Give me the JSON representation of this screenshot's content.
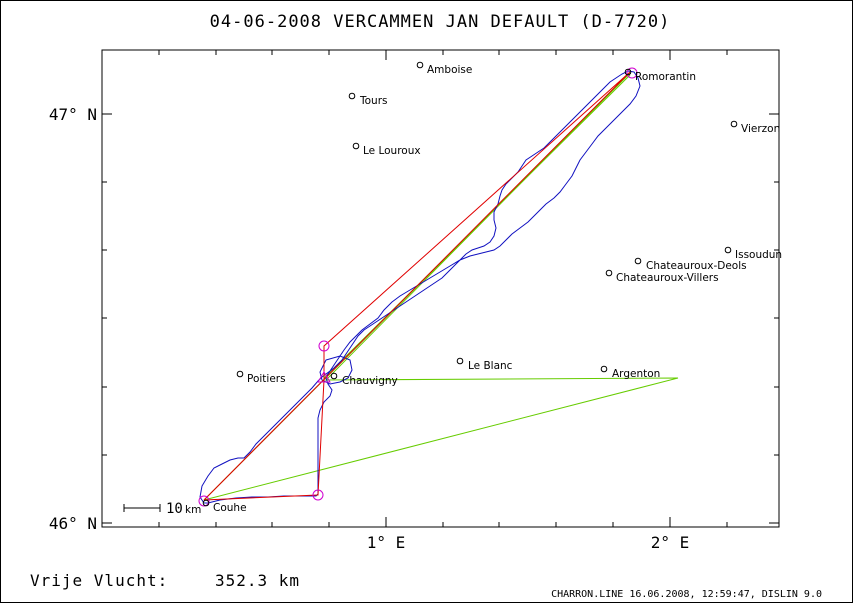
{
  "title": "04-06-2008    VERCAMMEN JAN    DEFAULT (D-7720)",
  "axes": {
    "lat_labels": [
      "47° N",
      "46° N"
    ],
    "lon_labels": [
      "1° E",
      "2° E"
    ]
  },
  "cities": [
    {
      "name": "Amboise"
    },
    {
      "name": "Tours"
    },
    {
      "name": "Le Louroux"
    },
    {
      "name": "Vierzon"
    },
    {
      "name": "Romorantin"
    },
    {
      "name": "Issoudun"
    },
    {
      "name": "Chateauroux-Deols"
    },
    {
      "name": "Chateauroux-Villers"
    },
    {
      "name": "Le Blanc"
    },
    {
      "name": "Argenton"
    },
    {
      "name": "Poitiers"
    },
    {
      "name": "Chauvigny"
    },
    {
      "name": "Couhe"
    }
  ],
  "scale": {
    "value": "10",
    "unit": "km"
  },
  "footer": {
    "distance_label": "Vrije Vlucht:",
    "distance_value": "352.3 km",
    "file_info": "CHARRON.LINE 16.06.2008, 12:59:47, DISLIN 9.0"
  },
  "colors": {
    "track": "#1010c0",
    "task_line": "#e00000",
    "optimized_line": "#66cc00",
    "turnpoint": "#d000d0",
    "frame": "#000000"
  }
}
